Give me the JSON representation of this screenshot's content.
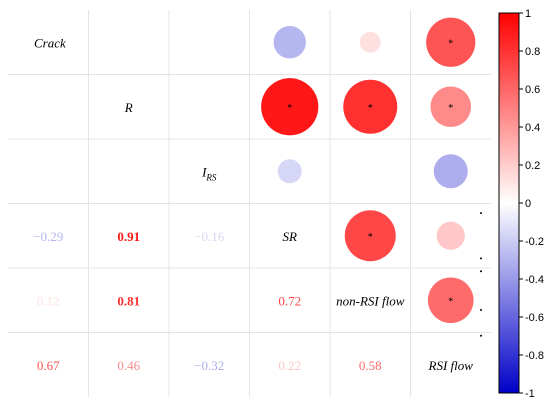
{
  "chart_data": {
    "type": "heatmap",
    "style": "correlogram",
    "variables": [
      "Crack",
      "R",
      "I_RS",
      "SR",
      "non-RSI flow",
      "RSI flow"
    ],
    "diagonal_labels": [
      {
        "main": "Crack",
        "sub": ""
      },
      {
        "main": "R",
        "sub": ""
      },
      {
        "main": "I",
        "sub": "RS"
      },
      {
        "main": "SR",
        "sub": ""
      },
      {
        "main": "non-RSI flow",
        "sub": ""
      },
      {
        "main": "RSI flow",
        "sub": ""
      }
    ],
    "lower_triangle_labels": [
      {
        "row": 3,
        "col": 0,
        "value": -0.29,
        "label": "−0.29"
      },
      {
        "row": 3,
        "col": 1,
        "value": 0.91,
        "label": "0.91"
      },
      {
        "row": 3,
        "col": 2,
        "value": -0.16,
        "label": "−0.16"
      },
      {
        "row": 4,
        "col": 0,
        "value": 0.12,
        "label": "0.12"
      },
      {
        "row": 4,
        "col": 1,
        "value": 0.81,
        "label": "0.81"
      },
      {
        "row": 4,
        "col": 3,
        "value": 0.72,
        "label": "0.72"
      },
      {
        "row": 5,
        "col": 0,
        "value": 0.67,
        "label": "0.67"
      },
      {
        "row": 5,
        "col": 1,
        "value": 0.46,
        "label": "0.46"
      },
      {
        "row": 5,
        "col": 2,
        "value": -0.32,
        "label": "−0.32"
      },
      {
        "row": 5,
        "col": 3,
        "value": 0.22,
        "label": "0.22"
      },
      {
        "row": 5,
        "col": 4,
        "value": 0.58,
        "label": "0.58"
      }
    ],
    "upper_triangle_circles": [
      {
        "row": 0,
        "col": 3,
        "value": -0.29,
        "significant": false
      },
      {
        "row": 0,
        "col": 4,
        "value": 0.12,
        "significant": false
      },
      {
        "row": 0,
        "col": 5,
        "value": 0.67,
        "significant": true
      },
      {
        "row": 1,
        "col": 3,
        "value": 0.91,
        "significant": true
      },
      {
        "row": 1,
        "col": 4,
        "value": 0.81,
        "significant": true
      },
      {
        "row": 1,
        "col": 5,
        "value": 0.46,
        "significant": true
      },
      {
        "row": 2,
        "col": 3,
        "value": -0.16,
        "significant": false
      },
      {
        "row": 2,
        "col": 5,
        "value": -0.32,
        "significant": false
      },
      {
        "row": 3,
        "col": 4,
        "value": 0.72,
        "significant": true
      },
      {
        "row": 3,
        "col": 5,
        "value": 0.22,
        "significant": false
      },
      {
        "row": 4,
        "col": 5,
        "value": 0.58,
        "significant": true
      }
    ],
    "colorbar": {
      "min": -1,
      "max": 1,
      "ticks": [
        {
          "value": 1,
          "label": "1"
        },
        {
          "value": 0.8,
          "label": "0.8"
        },
        {
          "value": 0.6,
          "label": "0.6"
        },
        {
          "value": 0.4,
          "label": "0.4"
        },
        {
          "value": 0.2,
          "label": "0.2"
        },
        {
          "value": 0,
          "label": "0"
        },
        {
          "value": -0.2,
          "label": "-0.2"
        },
        {
          "value": -0.4,
          "label": "-0.4"
        },
        {
          "value": -0.6,
          "label": "-0.6"
        },
        {
          "value": -0.8,
          "label": "-0.8"
        },
        {
          "value": -1,
          "label": "-1"
        }
      ]
    },
    "colors": {
      "positive": "#ff0000",
      "negative": "#0000c8",
      "neutral": "#ffffff",
      "grid": "#e4e4e4"
    },
    "significance_marker": "*"
  }
}
